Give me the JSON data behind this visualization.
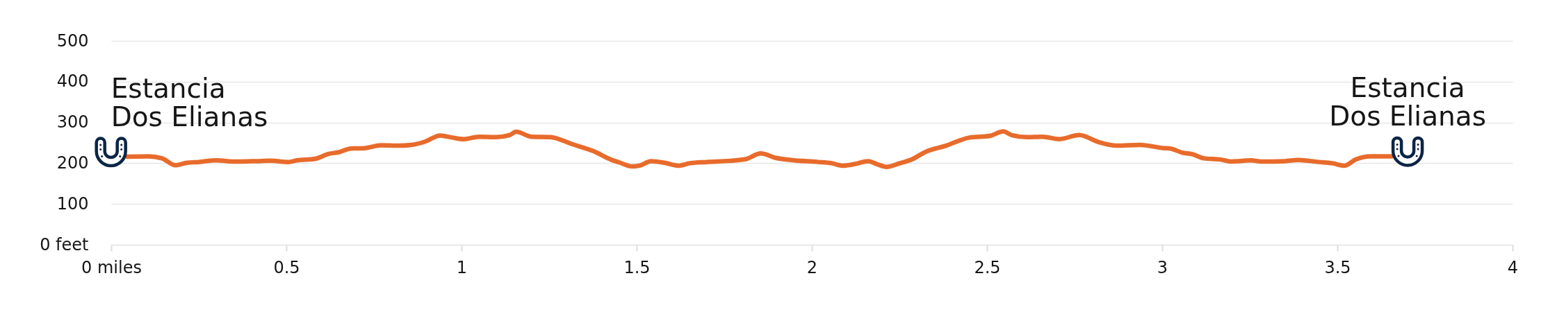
{
  "chart_data": {
    "type": "line",
    "x": [
      0.045,
      0.106,
      0.145,
      0.183,
      0.217,
      0.25,
      0.299,
      0.356,
      0.414,
      0.453,
      0.506,
      0.53,
      0.583,
      0.621,
      0.65,
      0.684,
      0.723,
      0.771,
      0.819,
      0.857,
      0.896,
      0.939,
      0.973,
      1.007,
      1.05,
      1.098,
      1.137,
      1.156,
      1.2,
      1.253,
      1.315,
      1.378,
      1.426,
      1.45,
      1.488,
      1.508,
      1.541,
      1.58,
      1.618,
      1.652,
      1.7,
      1.767,
      1.811,
      1.854,
      1.897,
      1.94,
      2.017,
      2.056,
      2.089,
      2.123,
      2.161,
      2.185,
      2.214,
      2.248,
      2.287,
      2.325,
      2.383,
      2.45,
      2.508,
      2.546,
      2.57,
      2.613,
      2.658,
      2.706,
      2.763,
      2.821,
      2.869,
      2.937,
      3.004,
      3.023,
      3.057,
      3.086,
      3.119,
      3.167,
      3.196,
      3.254,
      3.283,
      3.35,
      3.388,
      3.446,
      3.485,
      3.521,
      3.552,
      3.595,
      3.655
    ],
    "values": [
      216,
      217,
      212,
      195,
      201,
      203,
      207,
      204,
      205,
      206,
      203,
      207,
      211,
      223,
      227,
      236,
      237,
      244,
      243,
      245,
      253,
      268,
      263,
      259,
      265,
      264,
      269,
      277,
      265,
      264,
      247,
      229,
      209,
      202,
      192,
      194,
      205,
      201,
      194,
      200,
      203,
      206,
      210,
      224,
      213,
      208,
      203,
      200,
      194,
      198,
      205,
      198,
      191,
      199,
      210,
      228,
      243,
      263,
      267,
      278,
      269,
      264,
      265,
      259,
      269,
      251,
      243,
      245,
      237,
      236,
      226,
      222,
      212,
      209,
      204,
      207,
      204,
      205,
      208,
      203,
      200,
      194,
      209,
      217,
      217
    ],
    "color": "#e86b2b",
    "xlim": [
      0,
      4
    ],
    "xticks": [
      {
        "value": 0,
        "label": "0 miles"
      },
      0.5,
      1,
      1.5,
      2,
      2.5,
      3,
      3.5,
      4
    ],
    "ylim": [
      0,
      500
    ],
    "yticks": [
      {
        "value": 0,
        "label": "0 feet"
      },
      100,
      200,
      300,
      400,
      500
    ],
    "grid": "y",
    "annotations": [
      "Estancia\nDos Elianas",
      "Estancia\nDos Elianas"
    ]
  }
}
